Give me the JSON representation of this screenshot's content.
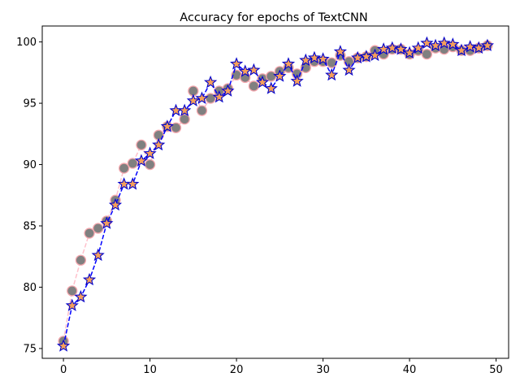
{
  "chart_data": {
    "type": "line",
    "title": "Accuracy for epochs of TextCNN",
    "xlabel": "",
    "ylabel": "",
    "xlim": [
      -2.45,
      51.45
    ],
    "ylim": [
      74.2,
      101.3
    ],
    "xticks": [
      0,
      10,
      20,
      30,
      40,
      50
    ],
    "yticks": [
      75,
      80,
      85,
      90,
      95,
      100
    ],
    "grid": false,
    "legend": "none",
    "x": [
      0,
      1,
      2,
      3,
      4,
      5,
      6,
      7,
      8,
      9,
      10,
      11,
      12,
      13,
      14,
      15,
      16,
      17,
      18,
      19,
      20,
      21,
      22,
      23,
      24,
      25,
      26,
      27,
      28,
      29,
      30,
      31,
      32,
      33,
      34,
      35,
      36,
      37,
      38,
      39,
      40,
      41,
      42,
      43,
      44,
      45,
      46,
      47,
      48,
      49
    ],
    "series": [
      {
        "style": "circle markers, pink dashed line",
        "marker_fill": "#808080",
        "marker_edge": "#f4a6ad",
        "line_color": "#ffc0cb",
        "values": [
          75.6,
          79.7,
          82.2,
          84.4,
          84.8,
          85.4,
          87.1,
          89.7,
          90.1,
          91.6,
          90.0,
          92.4,
          93.1,
          93.0,
          93.7,
          96.0,
          94.4,
          95.4,
          96.0,
          96.2,
          97.3,
          97.1,
          96.4,
          97.0,
          97.2,
          97.6,
          97.9,
          97.4,
          97.9,
          98.4,
          98.4,
          98.3,
          98.9,
          98.4,
          98.7,
          98.8,
          99.3,
          99.0,
          99.4,
          99.4,
          99.0,
          99.3,
          99.0,
          99.5,
          99.4,
          99.6,
          99.3,
          99.3,
          99.5,
          99.7
        ]
      },
      {
        "style": "star markers, blue dashed line",
        "marker_fill": "#f5a05a",
        "marker_edge": "#0000cc",
        "line_color": "#0000ff",
        "values": [
          75.2,
          78.5,
          79.2,
          80.6,
          82.6,
          85.2,
          86.7,
          88.4,
          88.4,
          90.3,
          90.9,
          91.6,
          93.1,
          94.4,
          94.4,
          95.2,
          95.4,
          96.7,
          95.5,
          96.0,
          98.2,
          97.6,
          97.7,
          96.7,
          96.2,
          97.2,
          98.2,
          96.8,
          98.5,
          98.7,
          98.6,
          97.3,
          99.2,
          97.7,
          98.7,
          98.8,
          98.9,
          99.4,
          99.5,
          99.4,
          99.1,
          99.5,
          99.9,
          99.7,
          99.9,
          99.8,
          99.3,
          99.6,
          99.5,
          99.7
        ]
      }
    ]
  }
}
